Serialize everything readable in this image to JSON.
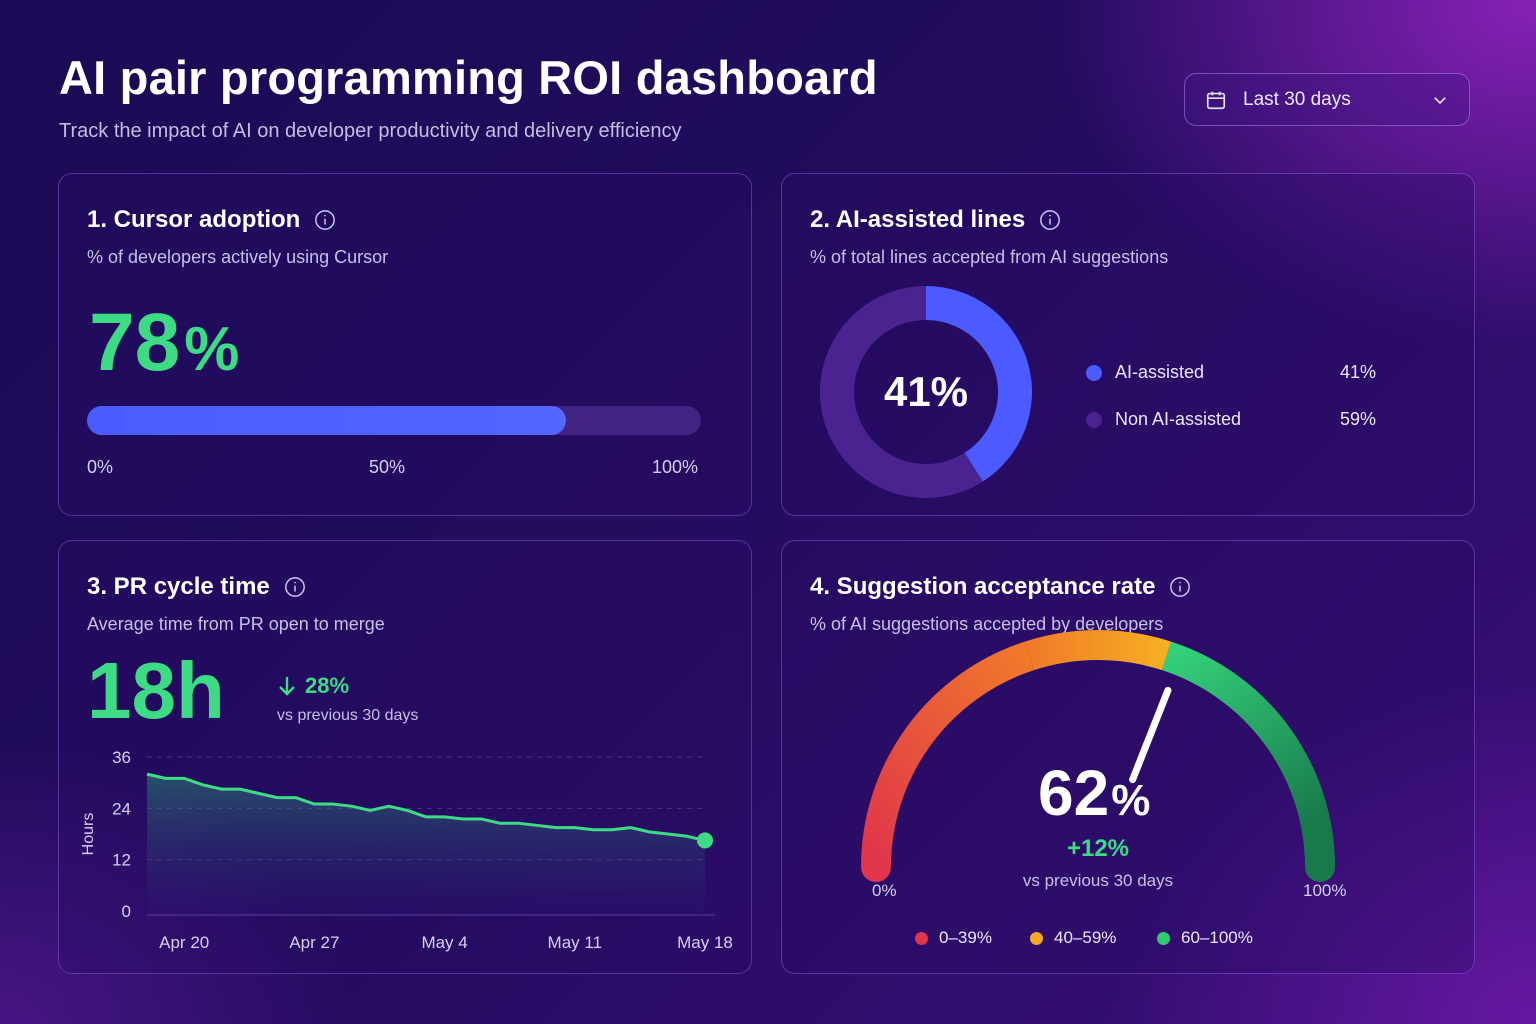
{
  "header": {
    "title": "AI pair programming ROI dashboard",
    "subtitle": "Track the impact of AI on developer productivity and delivery efficiency",
    "date_range": "Last 30 days",
    "date_icon": "calendar-icon",
    "dropdown_icon": "chevron-down-icon"
  },
  "cards": {
    "cursor_adoption": {
      "title": "1. Cursor adoption",
      "subtitle": "% of developers actively using Cursor",
      "value": "78",
      "unit": "%",
      "progress": 0.78,
      "ticks": [
        "0%",
        "50%",
        "100%"
      ]
    },
    "ai_lines": {
      "title": "2. AI-assisted lines",
      "subtitle": "% of total lines accepted from AI suggestions",
      "center": "41%",
      "legend": [
        {
          "label": "AI-assisted",
          "value": "41%",
          "color": "#4b5bff"
        },
        {
          "label": "Non AI-assisted",
          "value": "59%",
          "color": "#4a2390"
        }
      ]
    },
    "pr_cycle": {
      "title": "3. PR cycle time",
      "subtitle": "Average time from PR open to merge",
      "value": "18h",
      "delta": "28%",
      "delta_sub": "vs previous 30 days"
    },
    "acceptance": {
      "title": "4. Suggestion acceptance rate",
      "subtitle": "% of AI suggestions accepted by developers",
      "value": "62",
      "unit": "%",
      "delta": "+12%",
      "delta_sub": "vs previous 30 days",
      "min_label": "0%",
      "max_label": "100%",
      "legend": [
        {
          "label": "0–39%",
          "color": "#e0354a"
        },
        {
          "label": "40–59%",
          "color": "#f5a623"
        },
        {
          "label": "60–100%",
          "color": "#2ecc71"
        }
      ]
    }
  },
  "chart_data": [
    {
      "type": "pie",
      "categories": [
        "AI-assisted",
        "Non AI-assisted"
      ],
      "values": [
        41,
        59
      ],
      "colors": [
        "#4b5bff",
        "#4a2390"
      ]
    },
    {
      "type": "area",
      "title": "",
      "xlabel": "",
      "ylabel": "Hours",
      "ylim": [
        0,
        36
      ],
      "y_ticks": [
        "36",
        "24",
        "12",
        "0"
      ],
      "x_ticks": [
        "Apr 20",
        "Apr 27",
        "May 4",
        "May 11",
        "May 18"
      ],
      "x": [
        "Apr 18",
        "Apr 19",
        "Apr 20",
        "Apr 21",
        "Apr 22",
        "Apr 23",
        "Apr 24",
        "Apr 25",
        "Apr 26",
        "Apr 27",
        "Apr 28",
        "Apr 29",
        "Apr 30",
        "May 1",
        "May 2",
        "May 3",
        "May 4",
        "May 5",
        "May 6",
        "May 7",
        "May 8",
        "May 9",
        "May 10",
        "May 11",
        "May 12",
        "May 13",
        "May 14",
        "May 15",
        "May 16",
        "May 17",
        "May 18"
      ],
      "values": [
        32,
        31,
        31,
        29.5,
        28.5,
        28.5,
        27.5,
        26.5,
        26.5,
        25,
        25,
        24.5,
        23.5,
        24.5,
        23.5,
        22,
        22,
        21.5,
        21.5,
        20.5,
        20.5,
        20,
        19.5,
        19.5,
        19,
        19,
        19.5,
        18.5,
        18,
        17.5,
        16.5
      ],
      "grid": true,
      "line_color": "#3ddc84"
    },
    {
      "type": "gauge",
      "value": 62,
      "min": 0,
      "max": 100,
      "bands": [
        {
          "range": [
            0,
            39
          ],
          "color": "#e0354a"
        },
        {
          "range": [
            40,
            59
          ],
          "color": "#f5a623"
        },
        {
          "range": [
            60,
            100
          ],
          "color": "#2ecc71"
        }
      ]
    }
  ]
}
